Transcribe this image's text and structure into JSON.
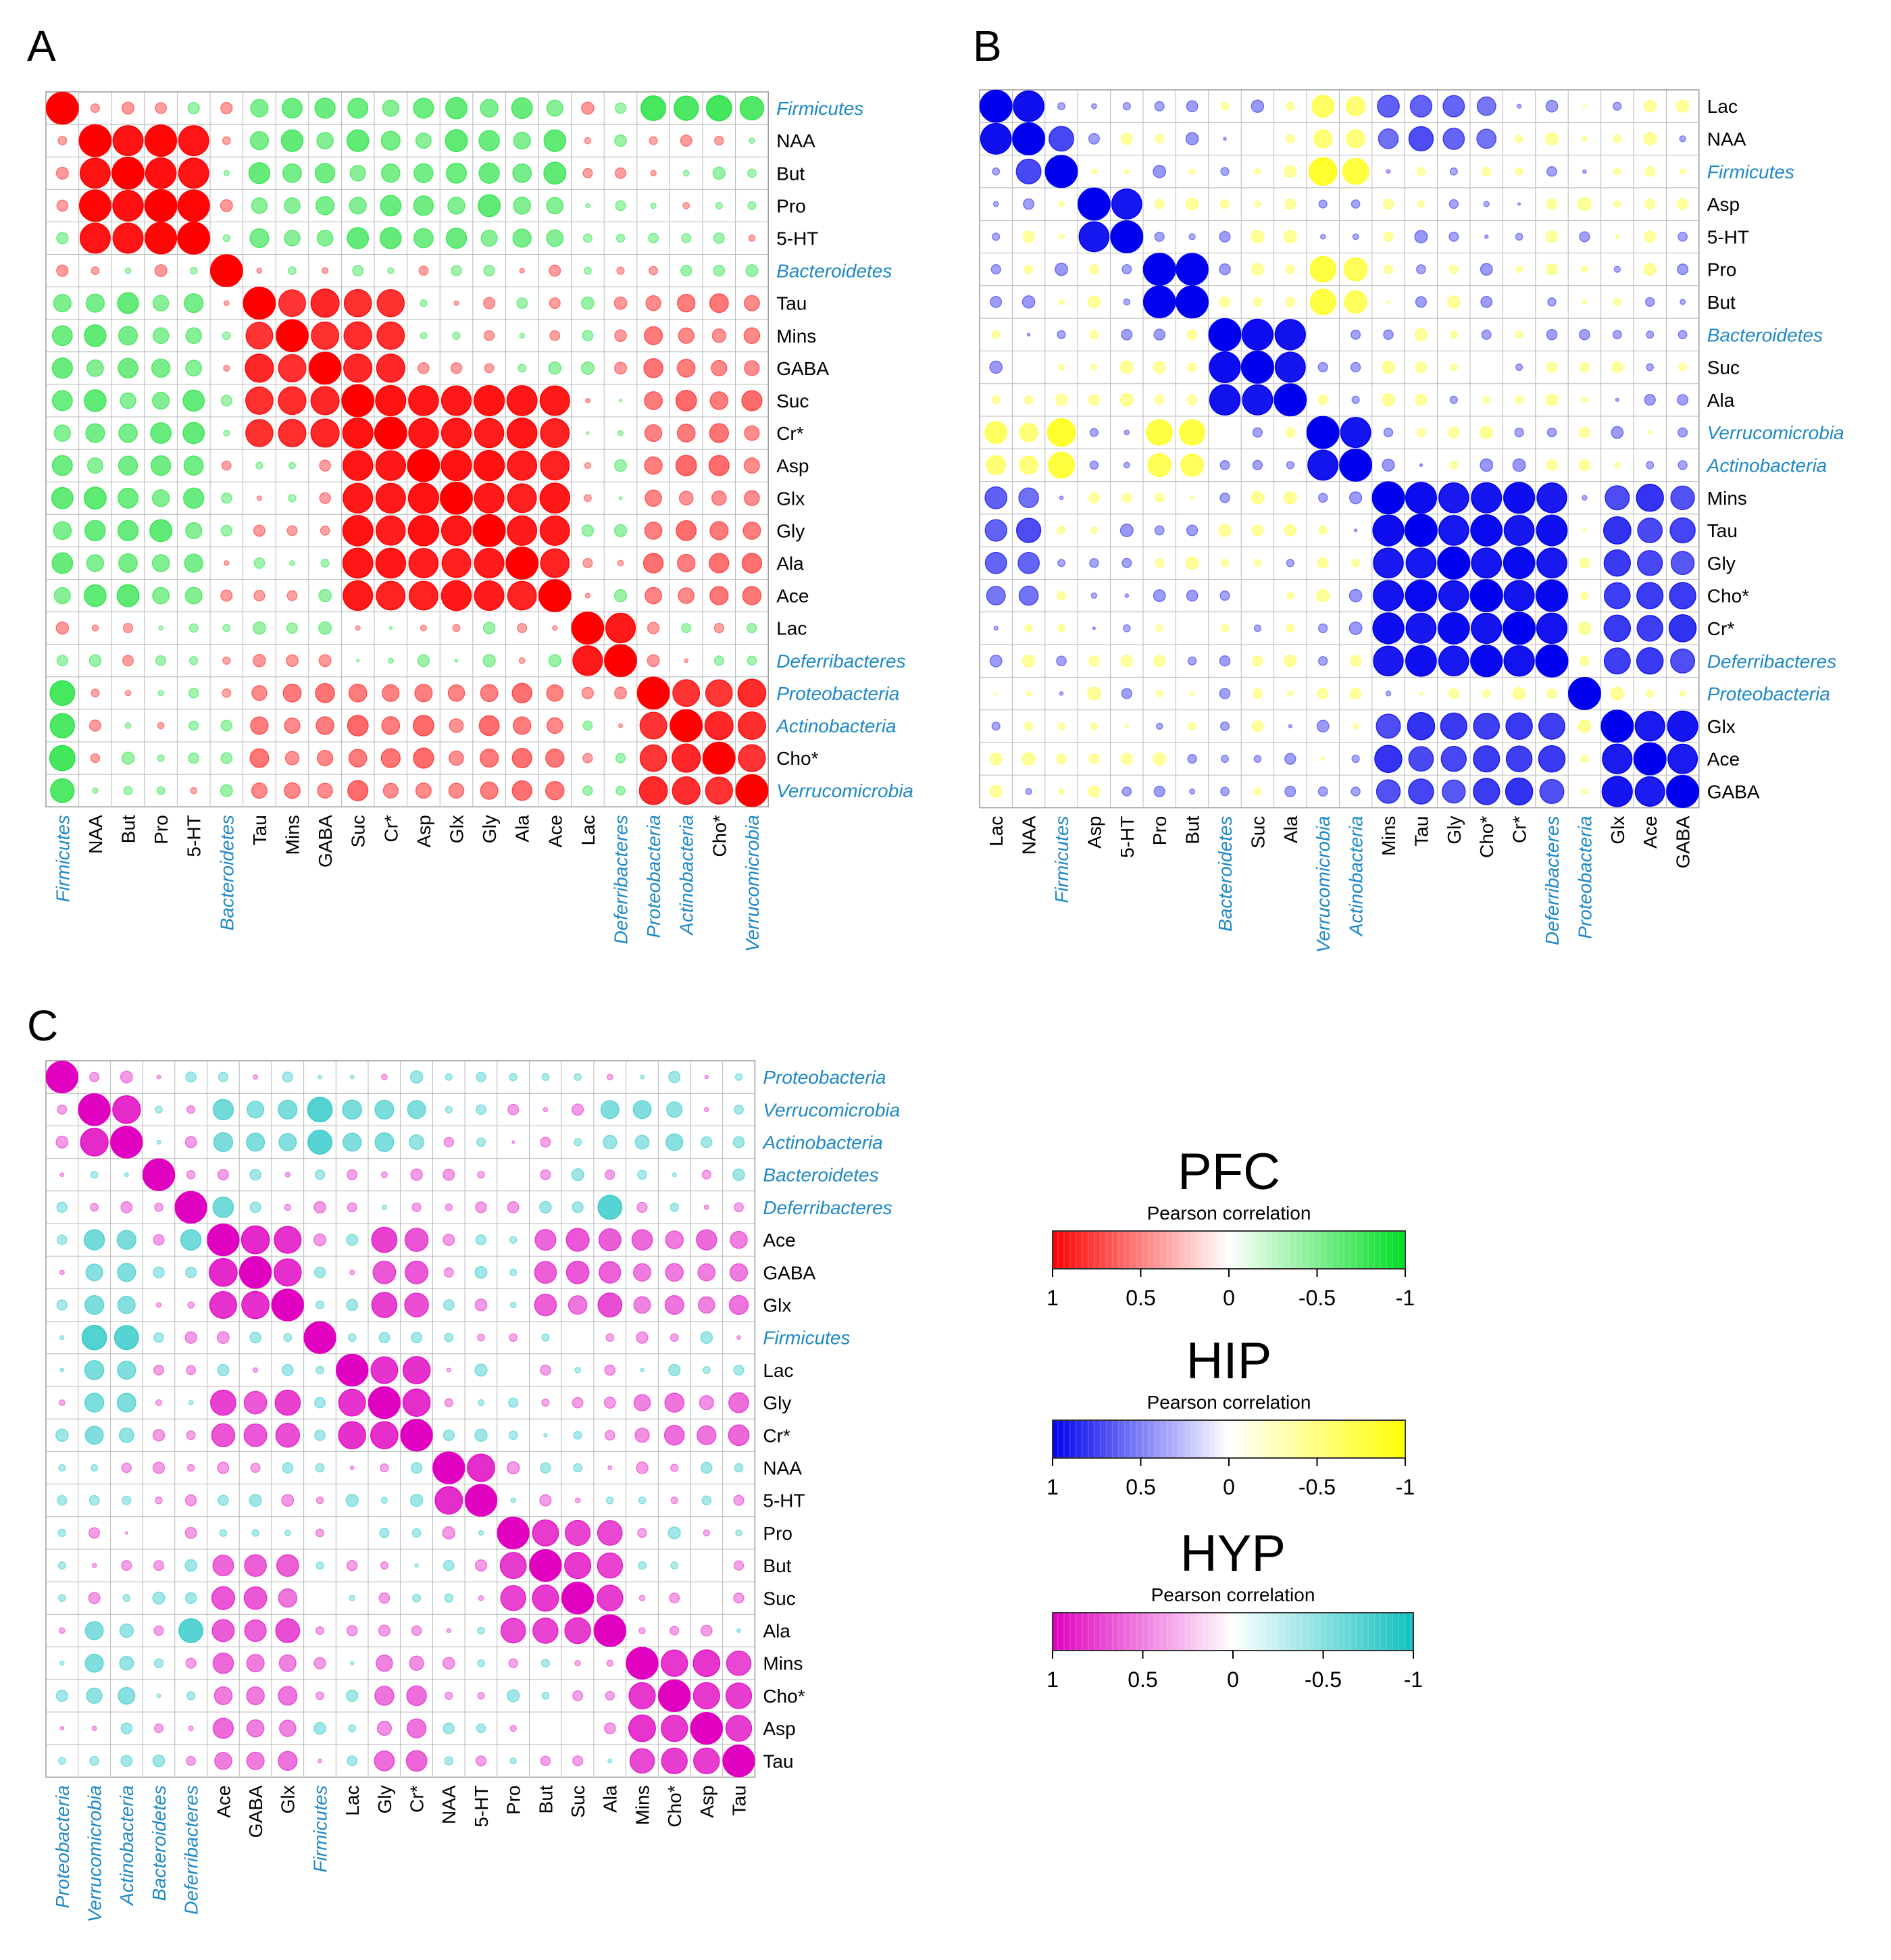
{
  "figure": {
    "panel_labels": [
      "A",
      "B",
      "C"
    ]
  },
  "chart_data": [
    {
      "type": "heatmap",
      "panel": "A",
      "region": "PFC",
      "title": "",
      "labels": [
        "Firmicutes",
        "NAA",
        "But",
        "Pro",
        "5-HT",
        "Bacteroidetes",
        "Tau",
        "Mins",
        "GABA",
        "Suc",
        "Cr*",
        "Asp",
        "Glx",
        "Gly",
        "Ala",
        "Ace",
        "Lac",
        "Deferribacteres",
        "Proteobacteria",
        "Actinobacteria",
        "Cho*",
        "Verrucomicrobia"
      ],
      "bacteria": [
        "Firmicutes",
        "Bacteroidetes",
        "Deferribacteres",
        "Proteobacteria",
        "Actinobacteria",
        "Verrucomicrobia"
      ],
      "blocks": [
        {
          "members": [
            "Firmicutes"
          ],
          "r": 1.0
        },
        {
          "members": [
            "NAA",
            "But",
            "Pro",
            "5-HT"
          ],
          "r": 0.93
        },
        {
          "members": [
            "Bacteroidetes"
          ],
          "r": 1.0
        },
        {
          "members": [
            "Tau",
            "Mins",
            "GABA",
            "Suc",
            "Cr*"
          ],
          "r": 0.75
        },
        {
          "members": [
            "Suc",
            "Cr*",
            "Asp",
            "Glx",
            "Gly",
            "Ala",
            "Ace"
          ],
          "r": 0.85
        },
        {
          "members": [
            "Lac",
            "Deferribacteres"
          ],
          "r": 0.88
        },
        {
          "members": [
            "Proteobacteria",
            "Actinobacteria",
            "Cho*",
            "Verrucomicrobia"
          ],
          "r": 0.72
        }
      ],
      "background": [
        {
          "rows": [
            "Firmicutes",
            "NAA",
            "But",
            "Pro",
            "5-HT"
          ],
          "cols": [
            "Tau",
            "Mins",
            "GABA",
            "Suc",
            "Cr*",
            "Asp",
            "Glx",
            "Gly",
            "Ala",
            "Ace"
          ],
          "r": -0.35
        },
        {
          "rows": [
            "Firmicutes"
          ],
          "cols": [
            "Proteobacteria",
            "Actinobacteria",
            "Cho*",
            "Verrucomicrobia"
          ],
          "r": -0.55
        },
        {
          "rows": [
            "Tau",
            "Mins",
            "GABA",
            "Suc",
            "Cr*",
            "Asp",
            "Glx",
            "Gly",
            "Ala",
            "Ace"
          ],
          "cols": [
            "Proteobacteria",
            "Actinobacteria",
            "Cho*",
            "Verrucomicrobia"
          ],
          "r": 0.3
        }
      ],
      "scale": {
        "min": -1,
        "max": 1,
        "positive_color": "#ff0000",
        "negative_color": "#00dd22"
      }
    },
    {
      "type": "heatmap",
      "panel": "B",
      "region": "HIP",
      "title": "",
      "labels": [
        "Lac",
        "NAA",
        "Firmicutes",
        "Asp",
        "5-HT",
        "Pro",
        "But",
        "Bacteroidetes",
        "Suc",
        "Ala",
        "Verrucomicrobia",
        "Actinobacteria",
        "Mins",
        "Tau",
        "Gly",
        "Cho*",
        "Cr*",
        "Deferribacteres",
        "Proteobacteria",
        "Glx",
        "Ace",
        "GABA"
      ],
      "bacteria": [
        "Firmicutes",
        "Bacteroidetes",
        "Verrucomicrobia",
        "Actinobacteria",
        "Deferribacteres",
        "Proteobacteria"
      ],
      "blocks": [
        {
          "members": [
            "Lac",
            "NAA"
          ],
          "r": 0.92
        },
        {
          "members": [
            "Firmicutes",
            "NAA"
          ],
          "r": 0.6
        },
        {
          "members": [
            "Asp",
            "5-HT"
          ],
          "r": 0.9
        },
        {
          "members": [
            "Pro",
            "But"
          ],
          "r": 0.95
        },
        {
          "members": [
            "Bacteroidetes",
            "Suc",
            "Ala"
          ],
          "r": 0.88
        },
        {
          "members": [
            "Verrucomicrobia",
            "Actinobacteria"
          ],
          "r": 0.92
        },
        {
          "members": [
            "Mins",
            "Tau",
            "Gly",
            "Cho*",
            "Cr*",
            "Deferribacteres"
          ],
          "r": 0.9
        },
        {
          "members": [
            "Proteobacteria"
          ],
          "r": 1.0
        },
        {
          "members": [
            "Glx",
            "Ace",
            "GABA"
          ],
          "r": 0.85
        }
      ],
      "background": [
        {
          "rows": [
            "Mins",
            "Tau",
            "Gly",
            "Cho*",
            "Cr*",
            "Deferribacteres"
          ],
          "cols": [
            "Glx",
            "Ace",
            "GABA"
          ],
          "r": 0.6
        },
        {
          "rows": [
            "Firmicutes"
          ],
          "cols": [
            "Verrucomicrobia",
            "Actinobacteria"
          ],
          "r": -0.7
        },
        {
          "rows": [
            "Pro",
            "But"
          ],
          "cols": [
            "Verrucomicrobia",
            "Actinobacteria"
          ],
          "r": -0.55
        },
        {
          "rows": [
            "Lac",
            "NAA"
          ],
          "cols": [
            "Mins",
            "Tau",
            "Gly",
            "Cho*"
          ],
          "r": 0.45
        },
        {
          "rows": [
            "Lac",
            "NAA"
          ],
          "cols": [
            "Verrucomicrobia",
            "Actinobacteria"
          ],
          "r": -0.35
        }
      ],
      "scale": {
        "min": -1,
        "max": 1,
        "positive_color": "#0000ee",
        "negative_color": "#ffff00"
      }
    },
    {
      "type": "heatmap",
      "panel": "C",
      "region": "HYP",
      "title": "",
      "labels": [
        "Proteobacteria",
        "Verrucomicrobia",
        "Actinobacteria",
        "Bacteroidetes",
        "Deferribacteres",
        "Ace",
        "GABA",
        "Glx",
        "Firmicutes",
        "Lac",
        "Gly",
        "Cr*",
        "NAA",
        "5-HT",
        "Pro",
        "But",
        "Suc",
        "Ala",
        "Mins",
        "Cho*",
        "Asp",
        "Tau"
      ],
      "bacteria": [
        "Proteobacteria",
        "Verrucomicrobia",
        "Actinobacteria",
        "Bacteroidetes",
        "Deferribacteres",
        "Firmicutes"
      ],
      "blocks": [
        {
          "members": [
            "Proteobacteria"
          ],
          "r": 0.9
        },
        {
          "members": [
            "Verrucomicrobia",
            "Actinobacteria"
          ],
          "r": 0.82
        },
        {
          "members": [
            "Bacteroidetes"
          ],
          "r": 0.9
        },
        {
          "members": [
            "Deferribacteres"
          ],
          "r": 0.9
        },
        {
          "members": [
            "Ace",
            "GABA",
            "Glx"
          ],
          "r": 0.75
        },
        {
          "members": [
            "Firmicutes"
          ],
          "r": 0.9
        },
        {
          "members": [
            "Lac",
            "Gly",
            "Cr*"
          ],
          "r": 0.72
        },
        {
          "members": [
            "NAA",
            "5-HT"
          ],
          "r": 0.8
        },
        {
          "members": [
            "Pro",
            "But",
            "Suc",
            "Ala"
          ],
          "r": 0.65
        },
        {
          "members": [
            "Mins",
            "Cho*",
            "Asp",
            "Tau"
          ],
          "r": 0.65
        }
      ],
      "background": [
        {
          "rows": [
            "Ace",
            "GABA",
            "Glx"
          ],
          "cols": [
            "Gly",
            "Cr*"
          ],
          "r": 0.6
        },
        {
          "rows": [
            "Ace",
            "GABA",
            "Glx"
          ],
          "cols": [
            "But",
            "Suc",
            "Ala"
          ],
          "r": 0.45
        },
        {
          "rows": [
            "Verrucomicrobia",
            "Actinobacteria"
          ],
          "cols": [
            "Firmicutes"
          ],
          "r": -0.6
        },
        {
          "rows": [
            "Verrucomicrobia",
            "Actinobacteria"
          ],
          "cols": [
            "Ace",
            "GABA",
            "Glx",
            "Lac",
            "Gly",
            "Cr*",
            "Ala",
            "Mins",
            "Cho*"
          ],
          "r": -0.3
        },
        {
          "rows": [
            "Deferribacteres"
          ],
          "cols": [
            "Ace",
            "Ala"
          ],
          "r": -0.45
        },
        {
          "rows": [
            "Mins",
            "Cho*",
            "Asp",
            "Tau"
          ],
          "cols": [
            "Ace",
            "GABA",
            "Glx",
            "Gly",
            "Cr*"
          ],
          "r": 0.3
        }
      ],
      "scale": {
        "min": -1,
        "max": 1,
        "positive_color": "#e000c0",
        "negative_color": "#10c0c0"
      }
    }
  ],
  "legends": [
    {
      "title": "PFC",
      "subtitle": "Pearson correlation",
      "ticks": [
        "1",
        "0.5",
        "0",
        "-0.5",
        "-1"
      ],
      "from_color": "#ff0000",
      "to_color": "#00dd22"
    },
    {
      "title": "HIP",
      "subtitle": "Pearson correlation",
      "ticks": [
        "1",
        "0.5",
        "0",
        "-0.5",
        "-1"
      ],
      "from_color": "#0000ee",
      "to_color": "#ffff00"
    },
    {
      "title": "HYP",
      "subtitle": "Pearson correlation",
      "ticks": [
        "1",
        "0.5",
        "0",
        "-0.5",
        "-1"
      ],
      "from_color": "#e000c0",
      "to_color": "#10c0c0"
    }
  ]
}
